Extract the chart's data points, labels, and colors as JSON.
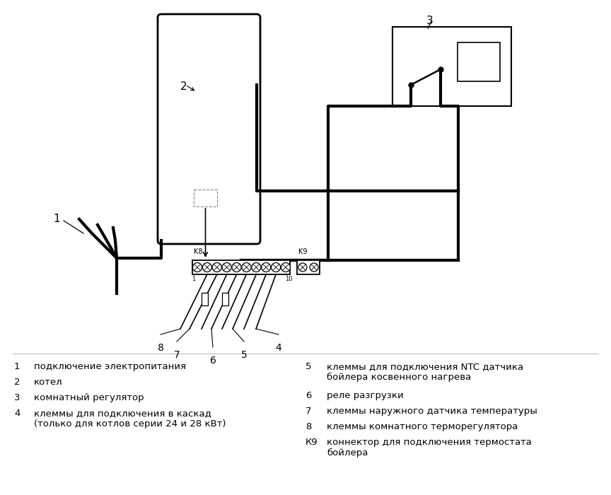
{
  "bg_color": "#ffffff",
  "lc": "#000000",
  "legend_left": [
    [
      "1",
      "подключение электропитания"
    ],
    [
      "2",
      "котел"
    ],
    [
      "3",
      "комнатный регулятор"
    ],
    [
      "4",
      "клеммы для подключения в каскад\n(только для котлов серии 24 и 28 кВт)"
    ]
  ],
  "legend_right": [
    [
      "5",
      "клеммы для подключения NTC датчика\nбойлера косвенного нагрева"
    ],
    [
      "6",
      "реле разгрузки"
    ],
    [
      "7",
      "клеммы наружного датчика температуры"
    ],
    [
      "8",
      "клеммы комнатного терморегулятора"
    ],
    [
      "К9",
      "коннектор для подключения термостата\nбойлера"
    ]
  ]
}
